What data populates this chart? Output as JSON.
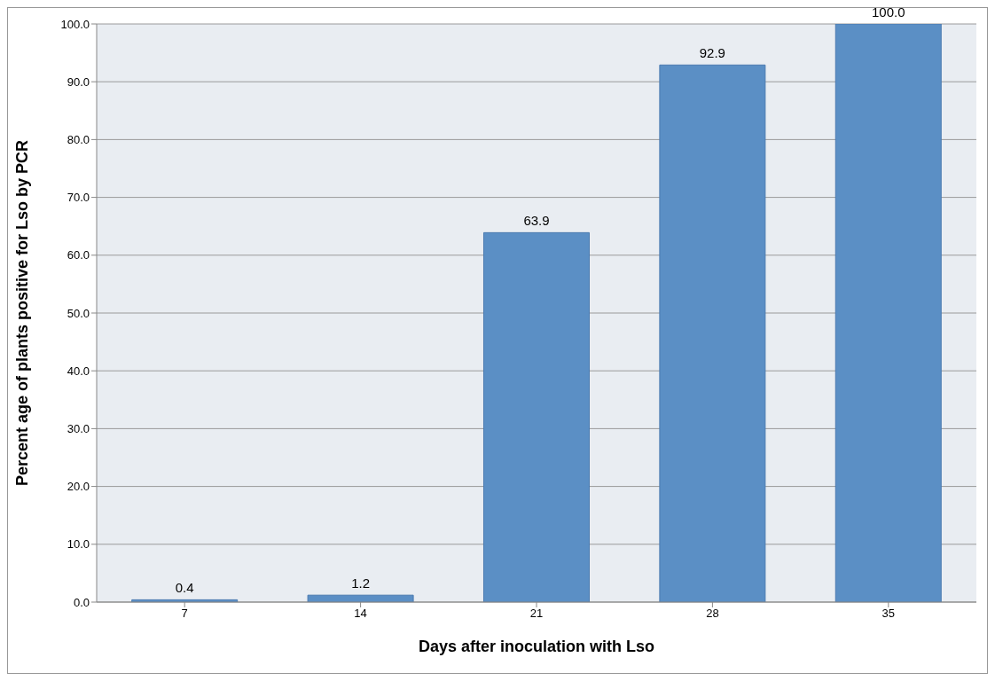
{
  "chart_data": {
    "type": "bar",
    "xlabel": "Days after inoculation with Lso",
    "ylabel": "Percent age of plants positive for Lso by PCR",
    "categories": [
      "7",
      "14",
      "21",
      "28",
      "35"
    ],
    "values": [
      0.4,
      1.2,
      63.9,
      92.9,
      100.0
    ],
    "value_labels": [
      "0.4",
      "1.2",
      "63.9",
      "92.9",
      "100.0"
    ],
    "color": "#5b8fc5",
    "ylim": [
      0,
      100
    ],
    "yticks": [
      {
        "value": 0,
        "label": "0.0"
      },
      {
        "value": 10,
        "label": "10.0"
      },
      {
        "value": 20,
        "label": "20.0"
      },
      {
        "value": 30,
        "label": "30.0"
      },
      {
        "value": 40,
        "label": "40.0"
      },
      {
        "value": 50,
        "label": "50.0"
      },
      {
        "value": 60,
        "label": "60.0"
      },
      {
        "value": 70,
        "label": "70.0"
      },
      {
        "value": 80,
        "label": "80.0"
      },
      {
        "value": 90,
        "label": "90.0"
      },
      {
        "value": 100,
        "label": "100.0"
      }
    ],
    "grid": "y"
  }
}
